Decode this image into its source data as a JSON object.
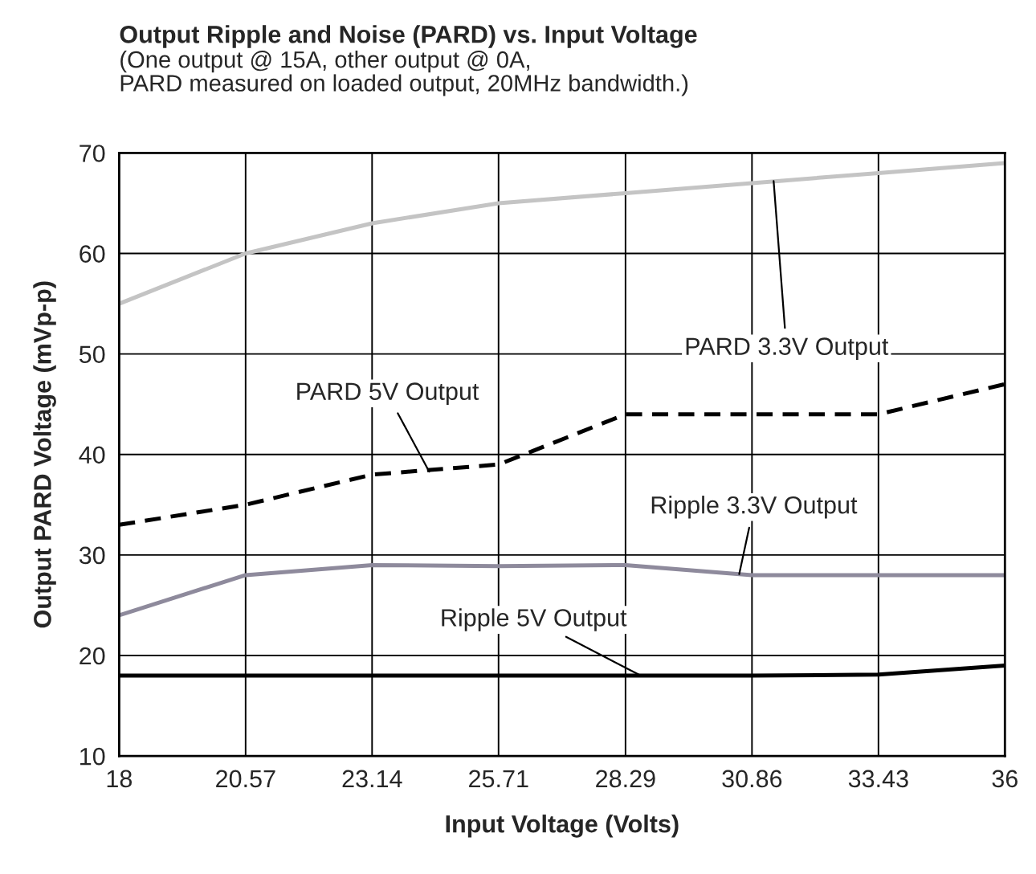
{
  "chart_data": {
    "type": "line",
    "title": "Output Ripple and Noise (PARD) vs. Input Voltage",
    "subtitle": "(One output @ 15A, other output @ 0A,\nPARD measured on loaded output, 20MHz bandwidth.)",
    "xlabel": "Input Voltage (Volts)",
    "ylabel": "Output PARD Voltage (mVp-p)",
    "x": [
      18,
      20.57,
      23.14,
      25.71,
      28.29,
      30.86,
      33.43,
      36
    ],
    "series": [
      {
        "color": "#c4c4c4",
        "line_style": "solid",
        "values": [
          55,
          60,
          63,
          65,
          66,
          67,
          68,
          69
        ]
      },
      {
        "color": "#000000",
        "line_style": "dashed",
        "values": [
          33,
          35,
          38,
          39,
          44,
          44,
          44,
          47
        ]
      },
      {
        "color": "#8e8a9c",
        "line_style": "solid",
        "values": [
          24,
          28,
          29,
          28.9,
          29,
          28,
          28,
          28
        ]
      },
      {
        "color": "#000000",
        "line_style": "solid",
        "values": [
          18,
          18,
          18,
          18,
          18,
          18,
          18.1,
          19
        ]
      }
    ],
    "annotations": [
      {
        "text": "PARD 3.3V Output",
        "x": 31.3,
        "y": 67.2
      },
      {
        "text": "PARD 5V Output",
        "x": 24.3,
        "y": 38.3
      },
      {
        "text": "Ripple 3.3V Output",
        "x": 30.6,
        "y": 28.1
      },
      {
        "text": "Ripple 5V Output",
        "x": 28.6,
        "y": 18
      }
    ],
    "xlim": [
      18,
      36
    ],
    "xticks": [
      18,
      20.57,
      23.14,
      25.71,
      28.29,
      30.86,
      33.43,
      36
    ],
    "ylim": [
      10,
      70
    ],
    "yticks": [
      10,
      20,
      30,
      40,
      50,
      60,
      70
    ],
    "grid": true,
    "legend": false
  }
}
